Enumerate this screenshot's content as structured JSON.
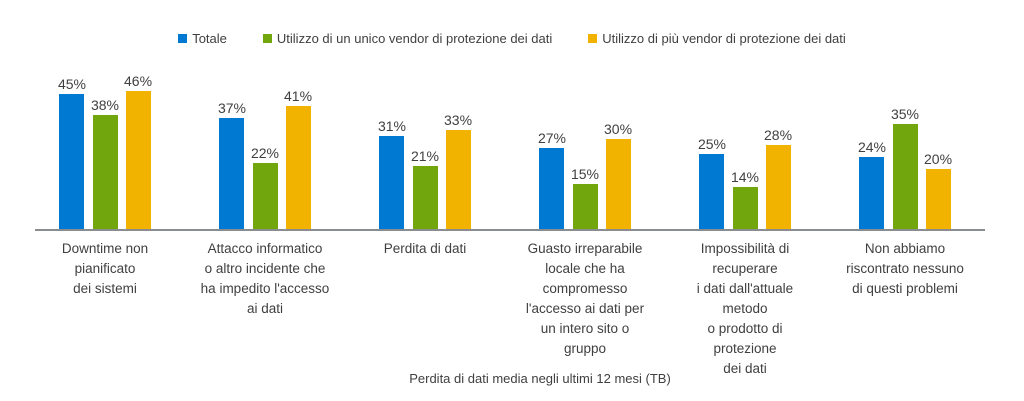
{
  "chart_data": {
    "type": "bar",
    "title": "",
    "xlabel": "Perdita di dati media negli ultimi 12 mesi (TB)",
    "ylabel": "",
    "value_suffix": "%",
    "ylim": [
      0,
      50
    ],
    "grid": false,
    "legend_position": "top",
    "categories": [
      "Downtime non\npianificato\ndei sistemi",
      "Attacco informatico\no altro incidente che\nha impedito l'accesso\nai dati",
      "Perdita di dati",
      "Guasto irreparabile\nlocale che ha\ncompromesso\nl'accesso ai dati per\nun intero sito o\ngruppo",
      "Impossibilità di\nrecuperare\ni dati dall'attuale\nmetodo\no prodotto di\nprotezione\ndei dati",
      "Non abbiamo\nriscontrato nessuno\ndi questi problemi"
    ],
    "series": [
      {
        "name": "Totale",
        "color": "#0079d2",
        "values": [
          45,
          37,
          31,
          27,
          25,
          24
        ]
      },
      {
        "name": "Utilizzo di un unico vendor di protezione dei dati",
        "color": "#71a60d",
        "values": [
          38,
          22,
          21,
          15,
          14,
          35
        ]
      },
      {
        "name": "Utilizzo di più vendor di protezione dei dati",
        "color": "#f2b200",
        "values": [
          46,
          41,
          33,
          30,
          28,
          20
        ]
      }
    ],
    "axis_line_color": "#8a8d90",
    "text_color": "#404040"
  }
}
